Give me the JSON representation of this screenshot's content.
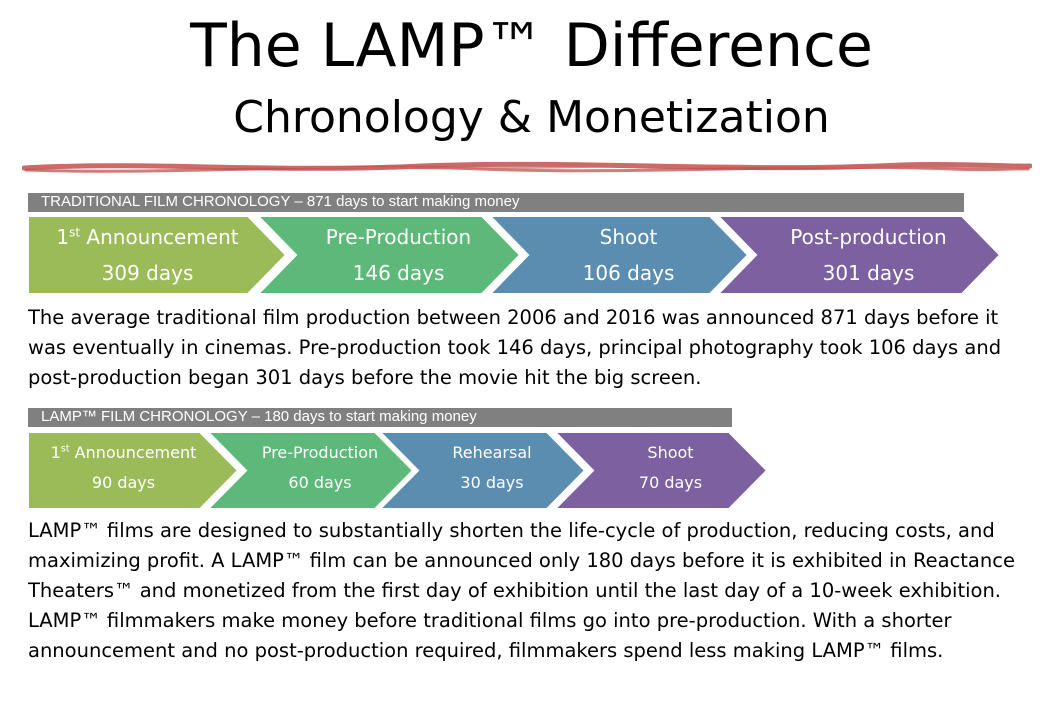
{
  "title": "The LAMP™ Difference",
  "subtitle": "Chronology & Monetization",
  "traditional": {
    "header": "TRADITIONAL FILM CHRONOLOGY – 871 days to start making money",
    "stages": [
      {
        "ord": "1",
        "sup": "st",
        "name": " Announcement",
        "days": "309 days",
        "color": "#9bbb59"
      },
      {
        "ord": "",
        "sup": "",
        "name": "Pre-Production",
        "days": "146 days",
        "color": "#5cb979"
      },
      {
        "ord": "",
        "sup": "",
        "name": "Shoot",
        "days": "106 days",
        "color": "#5b8db0"
      },
      {
        "ord": "",
        "sup": "",
        "name": "Post-production",
        "days": "301 days",
        "color": "#7d60a0"
      }
    ],
    "description": "The average traditional film production between 2006 and 2016 was announced 871 days before it was eventually in cinemas.  Pre-production took 146 days, principal photography took 106 days and post-production began 301 days before the movie hit the big screen."
  },
  "lamp": {
    "header": "LAMP™ FILM CHRONOLOGY – 180 days to start making money",
    "stages": [
      {
        "ord": "1",
        "sup": "st",
        "name": " Announcement",
        "days": "90 days",
        "color": "#9bbb59"
      },
      {
        "ord": "",
        "sup": "",
        "name": "Pre-Production",
        "days": "60 days",
        "color": "#5cb979"
      },
      {
        "ord": "",
        "sup": "",
        "name": "Rehearsal",
        "days": "30 days",
        "color": "#5b8db0"
      },
      {
        "ord": "",
        "sup": "",
        "name": "Shoot",
        "days": "70 days",
        "color": "#7d60a0"
      }
    ],
    "description": "LAMP™ films are designed to substantially shorten the life-cycle of production, reducing costs, and maximizing profit. A LAMP™ film can be announced only 180 days before it is exhibited in Reactance Theaters™ and monetized from the first day of exhibition until the last day of a 10-week exhibition. LAMP™ filmmakers make money before traditional films go into pre-production. With a shorter announcement and no post-production required, filmmakers spend less making LAMP™ films."
  }
}
